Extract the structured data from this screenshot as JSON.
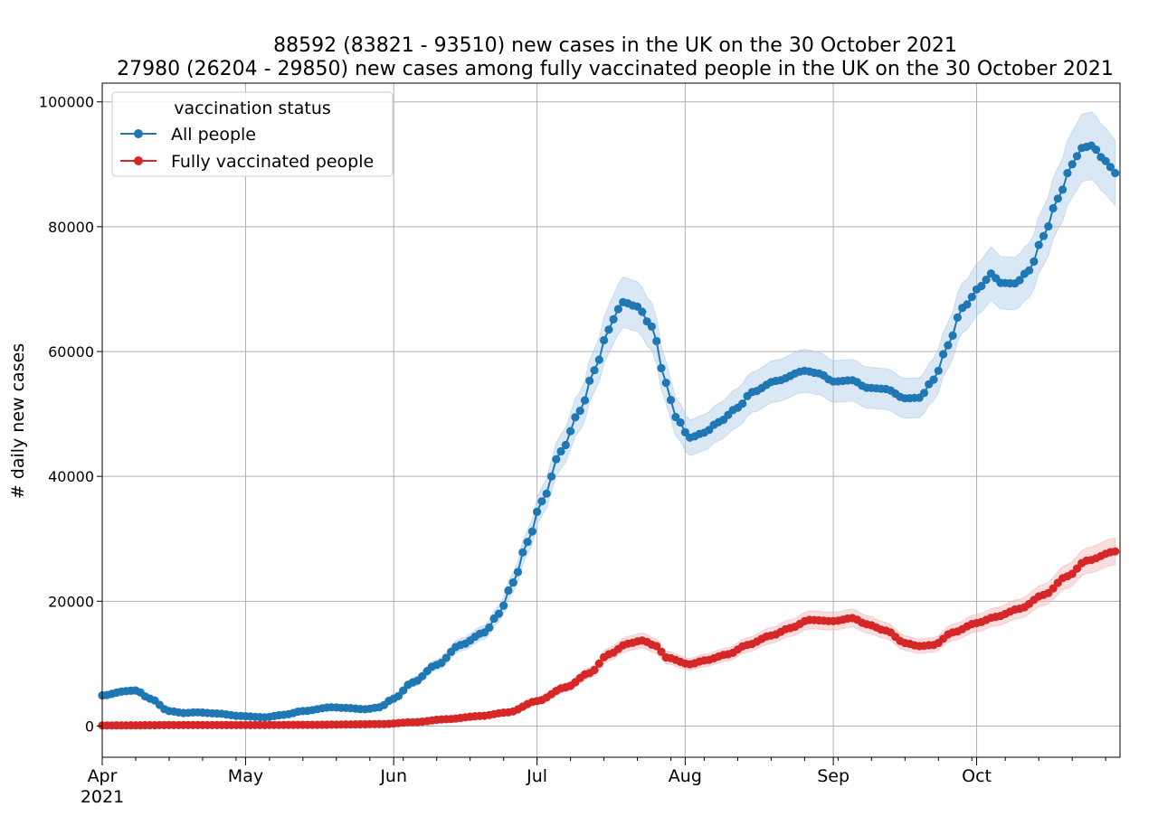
{
  "chart_data": {
    "type": "line",
    "title": "88592 (83821 - 93510) new cases in the UK on the 30 October 2021",
    "subtitle": "27980 (26204 - 29850) new cases among fully vaccinated people in the UK on the 30 October 2021",
    "xlabel": "",
    "ylabel": "# daily new cases",
    "xlim": [
      "2021-04-01",
      "2021-10-31"
    ],
    "ylim": [
      -5000,
      103000
    ],
    "grid": true,
    "legend": {
      "title": "vaccination status",
      "placement": "top-left"
    },
    "x_ticks": [
      {
        "date": "2021-04-01",
        "label": "Apr",
        "year": "2021"
      },
      {
        "date": "2021-05-01",
        "label": "May"
      },
      {
        "date": "2021-06-01",
        "label": "Jun"
      },
      {
        "date": "2021-07-01",
        "label": "Jul"
      },
      {
        "date": "2021-08-01",
        "label": "Aug"
      },
      {
        "date": "2021-09-01",
        "label": "Sep"
      },
      {
        "date": "2021-10-01",
        "label": "Oct"
      }
    ],
    "y_ticks": [
      {
        "value": 0,
        "label": "0"
      },
      {
        "value": 20000,
        "label": "20000"
      },
      {
        "value": 40000,
        "label": "40000"
      },
      {
        "value": 60000,
        "label": "60000"
      },
      {
        "value": 80000,
        "label": "80000"
      },
      {
        "value": 100000,
        "label": "100000"
      }
    ],
    "x_start": "2021-04-01",
    "x_end": "2021-10-30",
    "series": [
      {
        "name": "All people",
        "color": "#1f77b4",
        "band_color": "#aecde9",
        "ci_halfwidth_fraction": 0.055,
        "anchors": [
          [
            "2021-04-01",
            4900
          ],
          [
            "2021-04-06",
            5600
          ],
          [
            "2021-04-08",
            5700
          ],
          [
            "2021-04-11",
            4400
          ],
          [
            "2021-04-15",
            2400
          ],
          [
            "2021-04-18",
            2100
          ],
          [
            "2021-04-21",
            2200
          ],
          [
            "2021-04-25",
            2000
          ],
          [
            "2021-04-30",
            1600
          ],
          [
            "2021-05-05",
            1400
          ],
          [
            "2021-05-09",
            1800
          ],
          [
            "2021-05-13",
            2400
          ],
          [
            "2021-05-19",
            3000
          ],
          [
            "2021-05-22",
            2900
          ],
          [
            "2021-05-26",
            2700
          ],
          [
            "2021-05-29",
            3000
          ],
          [
            "2021-06-01",
            4400
          ],
          [
            "2021-06-05",
            7000
          ],
          [
            "2021-06-10",
            9800
          ],
          [
            "2021-06-15",
            13000
          ],
          [
            "2021-06-20",
            15000
          ],
          [
            "2021-06-23",
            18000
          ],
          [
            "2021-06-26",
            23000
          ],
          [
            "2021-06-29",
            29500
          ],
          [
            "2021-07-02",
            36000
          ],
          [
            "2021-07-06",
            44000
          ],
          [
            "2021-07-10",
            50500
          ],
          [
            "2021-07-13",
            57000
          ],
          [
            "2021-07-16",
            63500
          ],
          [
            "2021-07-18",
            66800
          ],
          [
            "2021-07-19",
            67900
          ],
          [
            "2021-07-22",
            67200
          ],
          [
            "2021-07-25",
            64000
          ],
          [
            "2021-07-28",
            55000
          ],
          [
            "2021-07-30",
            49500
          ],
          [
            "2021-08-02",
            46200
          ],
          [
            "2021-08-05",
            47000
          ],
          [
            "2021-08-08",
            48700
          ],
          [
            "2021-08-12",
            51000
          ],
          [
            "2021-08-15",
            53500
          ],
          [
            "2021-08-20",
            55300
          ],
          [
            "2021-08-26",
            56900
          ],
          [
            "2021-08-29",
            56500
          ],
          [
            "2021-09-01",
            55200
          ],
          [
            "2021-09-05",
            55400
          ],
          [
            "2021-09-08",
            54200
          ],
          [
            "2021-09-12",
            54000
          ],
          [
            "2021-09-16",
            52500
          ],
          [
            "2021-09-19",
            52600
          ],
          [
            "2021-09-22",
            55500
          ],
          [
            "2021-09-25",
            61000
          ],
          [
            "2021-09-28",
            67000
          ],
          [
            "2021-10-02",
            70500
          ],
          [
            "2021-10-04",
            72500
          ],
          [
            "2021-10-06",
            71000
          ],
          [
            "2021-10-09",
            70900
          ],
          [
            "2021-10-12",
            73000
          ],
          [
            "2021-10-15",
            78500
          ],
          [
            "2021-10-18",
            84500
          ],
          [
            "2021-10-21",
            90000
          ],
          [
            "2021-10-23",
            92600
          ],
          [
            "2021-10-25",
            93000
          ],
          [
            "2021-10-28",
            90500
          ],
          [
            "2021-10-30",
            88592
          ]
        ]
      },
      {
        "name": "Fully vaccinated people",
        "color": "#d62728",
        "band_color": "#f4b6b7",
        "ci_halfwidth_fraction": 0.066,
        "anchors": [
          [
            "2021-04-01",
            100
          ],
          [
            "2021-04-15",
            150
          ],
          [
            "2021-05-01",
            150
          ],
          [
            "2021-05-15",
            200
          ],
          [
            "2021-05-29",
            300
          ],
          [
            "2021-06-05",
            600
          ],
          [
            "2021-06-12",
            1100
          ],
          [
            "2021-06-19",
            1600
          ],
          [
            "2021-06-25",
            2200
          ],
          [
            "2021-07-01",
            4000
          ],
          [
            "2021-07-07",
            6200
          ],
          [
            "2021-07-12",
            8500
          ],
          [
            "2021-07-16",
            11500
          ],
          [
            "2021-07-20",
            13200
          ],
          [
            "2021-07-23",
            13700
          ],
          [
            "2021-07-26",
            12800
          ],
          [
            "2021-07-28",
            11000
          ],
          [
            "2021-08-02",
            9900
          ],
          [
            "2021-08-05",
            10500
          ],
          [
            "2021-08-10",
            11500
          ],
          [
            "2021-08-14",
            13000
          ],
          [
            "2021-08-19",
            14500
          ],
          [
            "2021-08-23",
            15700
          ],
          [
            "2021-08-27",
            17000
          ],
          [
            "2021-09-01",
            16800
          ],
          [
            "2021-09-05",
            17300
          ],
          [
            "2021-09-08",
            16300
          ],
          [
            "2021-09-12",
            15300
          ],
          [
            "2021-09-16",
            13300
          ],
          [
            "2021-09-19",
            12800
          ],
          [
            "2021-09-22",
            13000
          ],
          [
            "2021-09-26",
            15000
          ],
          [
            "2021-10-01",
            16500
          ],
          [
            "2021-10-05",
            17500
          ],
          [
            "2021-10-10",
            18800
          ],
          [
            "2021-10-15",
            21000
          ],
          [
            "2021-10-20",
            24000
          ],
          [
            "2021-10-24",
            26500
          ],
          [
            "2021-10-30",
            27980
          ]
        ]
      }
    ]
  }
}
